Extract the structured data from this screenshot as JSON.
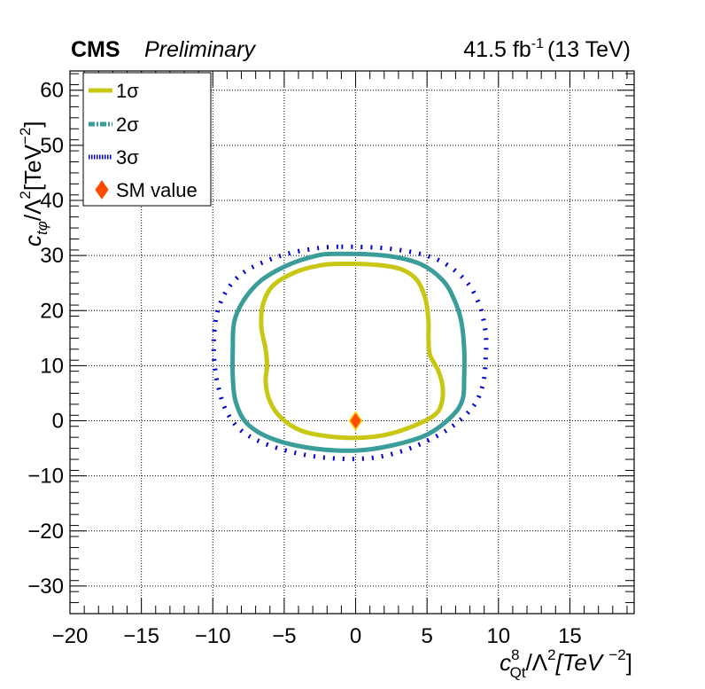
{
  "header": {
    "experiment": "CMS",
    "status": "Preliminary",
    "luminosity_value": "41.5 fb",
    "luminosity_exponent": "-1",
    "energy": "(13 TeV)"
  },
  "chart_data": {
    "type": "contour",
    "x_axis": {
      "symbol": "c",
      "superscript": "8",
      "subscript": "Qt",
      "label_rest": "/Λ",
      "label_units": "[TeV ",
      "units_exponent": "−2",
      "units_close": "]",
      "range": [
        -20,
        19.5
      ],
      "ticks": [
        -20,
        -15,
        -10,
        -5,
        0,
        5,
        10,
        15
      ],
      "tick_labels": [
        "−20",
        "−15",
        "−10",
        "−5",
        "0",
        "5",
        "10",
        "15"
      ]
    },
    "y_axis": {
      "symbol": "c",
      "subscript": "tφ",
      "label_rest": "/Λ",
      "label_units": "[TeV",
      "units_exponent": "−2",
      "units_close": "]",
      "range": [
        -35,
        63.5
      ],
      "ticks": [
        -30,
        -20,
        -10,
        0,
        10,
        20,
        30,
        40,
        50,
        60
      ],
      "tick_labels": [
        "−30",
        "−20",
        "−10",
        "0",
        "10",
        "20",
        "30",
        "40",
        "50",
        "60"
      ]
    },
    "grid": true,
    "legend_position": "top-left",
    "legend": [
      {
        "label": "1σ",
        "style": "solid",
        "color": "#c8c814"
      },
      {
        "label": "2σ",
        "style": "dash-dot",
        "color": "#3a9d9a"
      },
      {
        "label": "3σ",
        "style": "dotted",
        "color": "#0000d4"
      },
      {
        "label": "SM value",
        "style": "marker-diamond",
        "color": "#ff4a00"
      }
    ],
    "series": [
      {
        "name": "1σ",
        "color": "#c8c814",
        "points": [
          [
            -1,
            28.5
          ],
          [
            1.5,
            28.3
          ],
          [
            3.2,
            27.5
          ],
          [
            4.3,
            25.5
          ],
          [
            4.9,
            22
          ],
          [
            5.1,
            18
          ],
          [
            5.1,
            15
          ],
          [
            5.2,
            12
          ],
          [
            5.8,
            9
          ],
          [
            6.1,
            6
          ],
          [
            6,
            3
          ],
          [
            5.5,
            1
          ],
          [
            4,
            -1
          ],
          [
            2,
            -2.6
          ],
          [
            0,
            -3.1
          ],
          [
            -2,
            -2.8
          ],
          [
            -3.8,
            -1.8
          ],
          [
            -5.2,
            0.5
          ],
          [
            -6,
            3.5
          ],
          [
            -6.3,
            7
          ],
          [
            -6.2,
            10
          ],
          [
            -6.3,
            13
          ],
          [
            -6.6,
            17
          ],
          [
            -6.5,
            21
          ],
          [
            -5.8,
            24.5
          ],
          [
            -4.2,
            27
          ],
          [
            -2.5,
            28.2
          ],
          [
            -1,
            28.5
          ]
        ]
      },
      {
        "name": "2σ",
        "color": "#3a9d9a",
        "points": [
          [
            -1.5,
            30.3
          ],
          [
            2,
            30
          ],
          [
            4.5,
            28.5
          ],
          [
            6.1,
            25.5
          ],
          [
            6.9,
            22
          ],
          [
            7.4,
            18
          ],
          [
            7.6,
            13
          ],
          [
            7.6,
            8
          ],
          [
            7.5,
            4
          ],
          [
            6.8,
            1
          ],
          [
            5,
            -2.5
          ],
          [
            2.5,
            -4.5
          ],
          [
            0,
            -5.4
          ],
          [
            -3,
            -5
          ],
          [
            -5.8,
            -3.3
          ],
          [
            -7.6,
            -0.5
          ],
          [
            -8.4,
            3.5
          ],
          [
            -8.6,
            8
          ],
          [
            -8.6,
            13
          ],
          [
            -8.5,
            18
          ],
          [
            -7.8,
            22
          ],
          [
            -6.6,
            25.5
          ],
          [
            -4.8,
            28.2
          ],
          [
            -3,
            29.8
          ],
          [
            -1.5,
            30.3
          ]
        ]
      },
      {
        "name": "3σ",
        "color": "#0000d4",
        "points": [
          [
            -1,
            31.6
          ],
          [
            2.5,
            31.2
          ],
          [
            5.5,
            29.5
          ],
          [
            7.5,
            26
          ],
          [
            8.6,
            21.5
          ],
          [
            9.1,
            16
          ],
          [
            9.1,
            11
          ],
          [
            8.9,
            6.5
          ],
          [
            8.2,
            2.5
          ],
          [
            6.5,
            -1.5
          ],
          [
            4,
            -4.8
          ],
          [
            1.5,
            -6.6
          ],
          [
            -1,
            -6.9
          ],
          [
            -3.5,
            -6.2
          ],
          [
            -6,
            -4.5
          ],
          [
            -7.9,
            -2
          ],
          [
            -9,
            1.5
          ],
          [
            -9.6,
            6
          ],
          [
            -9.9,
            11
          ],
          [
            -9.9,
            16
          ],
          [
            -9.6,
            20.5
          ],
          [
            -8.8,
            24.5
          ],
          [
            -7.5,
            27.5
          ],
          [
            -5.2,
            30
          ],
          [
            -3,
            31.2
          ],
          [
            -1,
            31.6
          ]
        ]
      }
    ],
    "sm_value": {
      "label": "SM value",
      "x": 0,
      "y": 0,
      "color": "#ff4a00",
      "edge_color": "#ffd700"
    }
  }
}
